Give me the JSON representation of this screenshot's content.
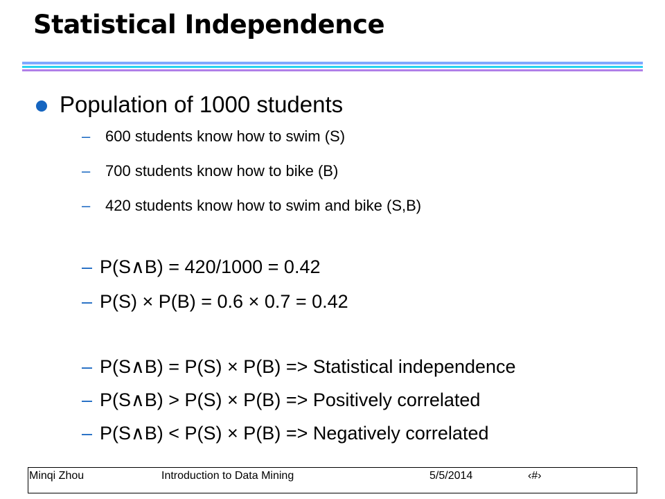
{
  "slide": {
    "title": "Statistical Independence",
    "bullet": "Population of 1000 students",
    "dash": "–",
    "subitems": [
      "600 students know how to swim (S)",
      "700 students know how to bike (B)",
      "420 students know how to swim and bike (S,B)",
      "P(S∧B) = 420/1000 = 0.42",
      "P(S) × P(B) = 0.6 × 0.7 = 0.42",
      "P(S∧B) = P(S) × P(B) => Statistical independence",
      "P(S∧B) > P(S) × P(B) => Positively correlated",
      "P(S∧B) < P(S) × P(B) => Negatively correlated"
    ]
  },
  "footer": {
    "author": "Minqi Zhou",
    "course": "Introduction to Data Mining",
    "date": "5/5/2014",
    "page": "‹#›"
  },
  "colors": {
    "bullet": "#1565c0",
    "rule_top": "#7fa8ff",
    "rule_mid": "#29d3f0",
    "rule_bottom": "#b07fe8"
  }
}
